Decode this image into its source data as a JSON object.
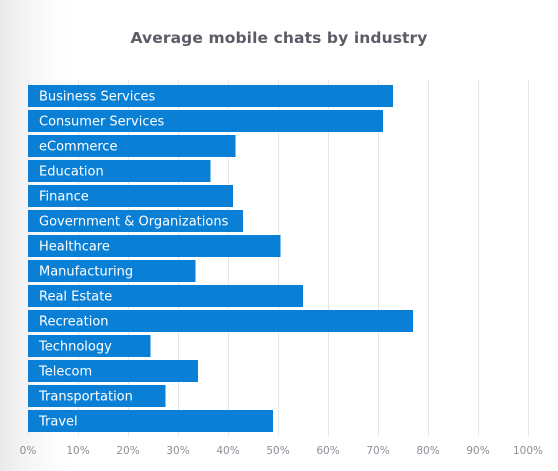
{
  "chart_data": {
    "type": "bar",
    "orientation": "horizontal",
    "title": "Average mobile chats by industry",
    "xlabel": "",
    "ylabel": "",
    "xlim": [
      0,
      100
    ],
    "x_ticks": [
      "0%",
      "10%",
      "20%",
      "30%",
      "40%",
      "50%",
      "60%",
      "70%",
      "80%",
      "90%",
      "100%"
    ],
    "grid": true,
    "bar_color": "#0a7fd6",
    "categories": [
      "Business Services",
      "Consumer Services",
      "eCommerce",
      "Education",
      "Finance",
      "Government & Organizations",
      "Healthcare",
      "Manufacturing",
      "Real Estate",
      "Recreation",
      "Technology",
      "Telecom",
      "Transportation",
      "Travel"
    ],
    "values": [
      73,
      71,
      41.5,
      36.5,
      41,
      43,
      50.5,
      33.5,
      55,
      77,
      24.5,
      34,
      27.5,
      49
    ]
  }
}
